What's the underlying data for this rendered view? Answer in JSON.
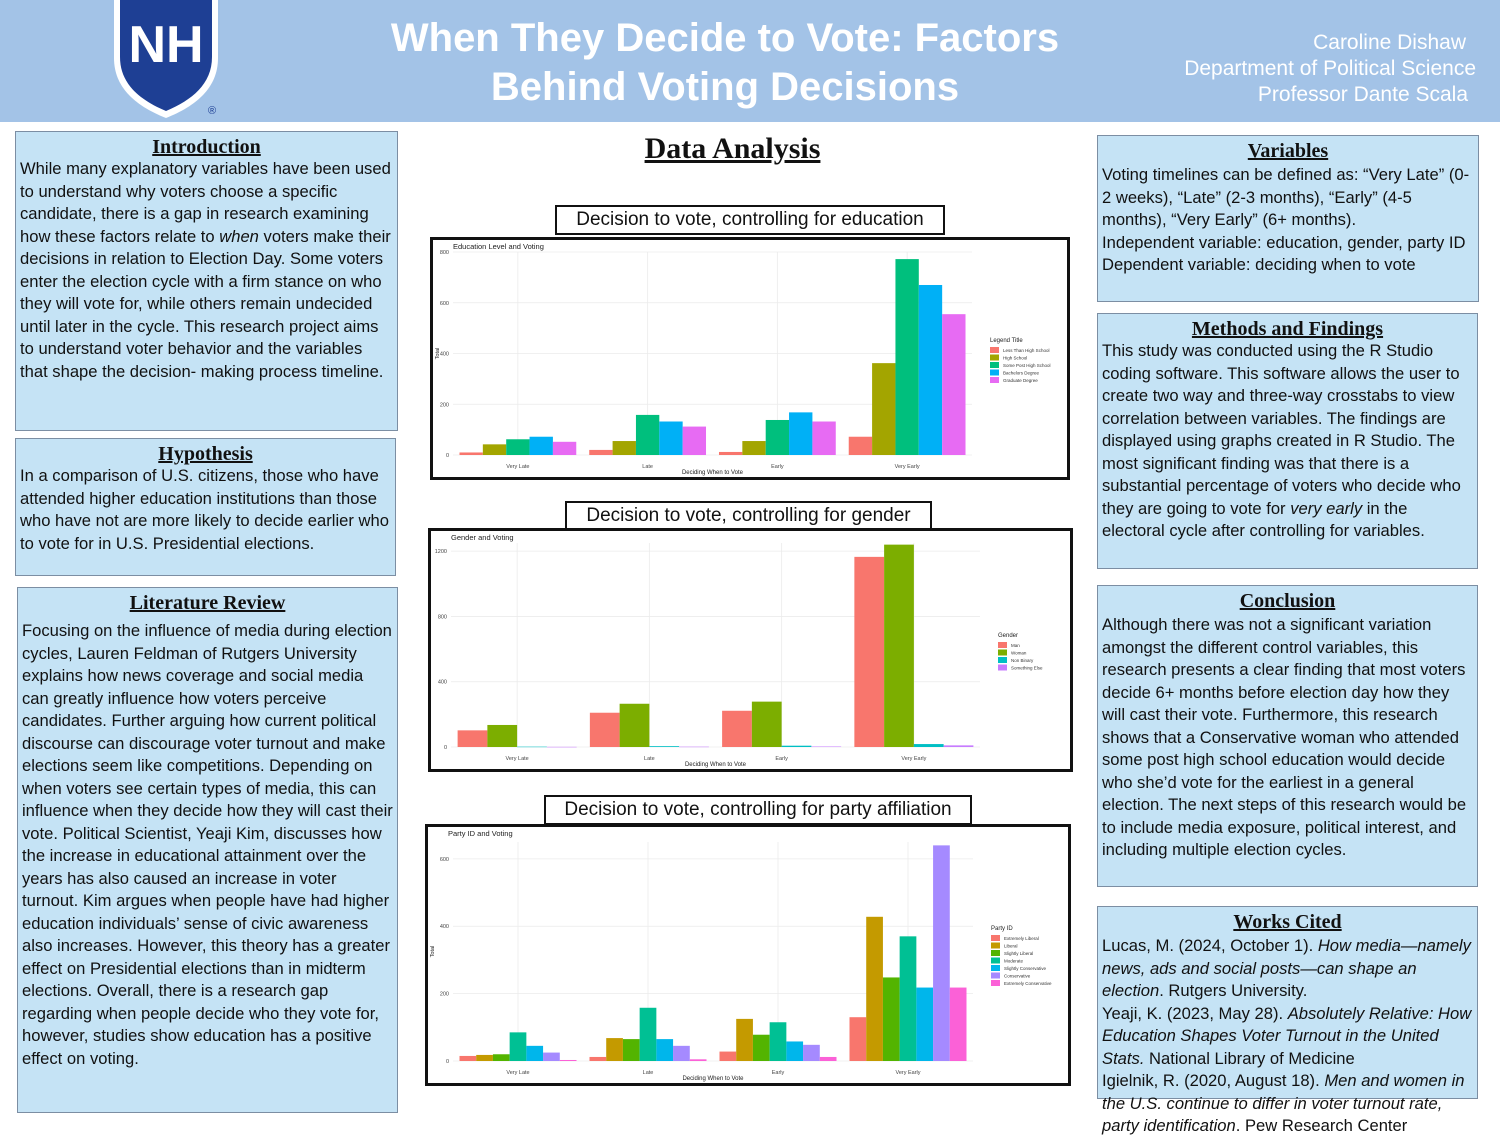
{
  "header": {
    "logo_text": "NH",
    "title_line1": "When They Decide to Vote: Factors",
    "title_line2": "Behind Voting Decisions",
    "author": "Caroline Dishaw",
    "department": "Department of Political Science",
    "professor": "Professor Dante Scala"
  },
  "introduction": {
    "heading": "Introduction",
    "text_before": "While many explanatory variables have been used to understand why voters choose a specific candidate, there is a gap in research examining how these factors relate to ",
    "text_em": "when",
    "text_after": " voters make their decisions in relation to Election Day. Some voters enter the election cycle with a firm stance on who they will vote for, while others remain undecided until later in the cycle. This research project aims to understand voter behavior and the variables that shape the decision- making process timeline."
  },
  "hypothesis": {
    "heading": "Hypothesis",
    "text": "In a comparison of U.S. citizens, those who have attended higher education institutions than those who have not are more likely to decide earlier who to vote for  in U.S.  Presidential elections."
  },
  "literature": {
    "heading": "Literature Review",
    "text": "Focusing on the influence of media during election cycles, Lauren Feldman of Rutgers University explains how news coverage and social media can greatly influence how voters perceive candidates. Further arguing how current political discourse can discourage voter turnout and make elections seem like competitions. Depending on when voters see certain types of media, this can influence when they decide how they will cast their vote. Political Scientist, Yeaji Kim, discusses how the increase in educational attainment over the years has also caused an increase in voter turnout. Kim argues when people have had higher education individuals’ sense of  civic awareness also increases. However, this theory has a greater effect on Presidential elections than in midterm elections. Overall, there is a research gap regarding when people decide who they vote for, however, studies show education has a positive effect on voting."
  },
  "data_analysis": {
    "heading": "Data Analysis"
  },
  "charts": {
    "education_label": "Decision to vote, controlling for education",
    "gender_label": "Decision to vote, controlling for gender",
    "party_label": "Decision to vote, controlling for party affiliation"
  },
  "chart_data": [
    {
      "type": "bar",
      "title": "Education Level and Voting",
      "xlabel": "Deciding When to Vote",
      "ylabel": "Total",
      "categories": [
        "Very Late",
        "Late",
        "Early",
        "Very Early"
      ],
      "ylim": [
        0,
        800
      ],
      "yticks": [
        0,
        200,
        400,
        600,
        800
      ],
      "legend_title": "Legend Title",
      "legend_position": "right",
      "series": [
        {
          "name": "Less Than High School",
          "color": "#f8766d",
          "values": [
            10,
            20,
            12,
            72
          ]
        },
        {
          "name": "High School",
          "color": "#a3a500",
          "values": [
            42,
            55,
            55,
            362
          ]
        },
        {
          "name": "Some Post High School",
          "color": "#00bf7d",
          "values": [
            62,
            158,
            138,
            772
          ]
        },
        {
          "name": "Bachelors Degree",
          "color": "#00b0f6",
          "values": [
            72,
            132,
            168,
            670
          ]
        },
        {
          "name": "Graduate Degree",
          "color": "#e76bf3",
          "values": [
            52,
            112,
            132,
            555
          ]
        }
      ]
    },
    {
      "type": "bar",
      "title": "Gender and Voting",
      "xlabel": "Deciding When to Vote",
      "ylabel": "",
      "categories": [
        "Very Late",
        "Late",
        "Early",
        "Very Early"
      ],
      "ylim": [
        0,
        1250
      ],
      "yticks": [
        0,
        400,
        800,
        1200
      ],
      "legend_title": "Gender",
      "legend_position": "right",
      "series": [
        {
          "name": "Man",
          "color": "#f8766d",
          "values": [
            102,
            210,
            222,
            1165
          ]
        },
        {
          "name": "Woman",
          "color": "#7cae00",
          "values": [
            135,
            265,
            278,
            1240
          ]
        },
        {
          "name": "Non Binary",
          "color": "#00bfc4",
          "values": [
            2,
            5,
            8,
            18
          ]
        },
        {
          "name": "Something Else",
          "color": "#c77cff",
          "values": [
            1,
            2,
            3,
            10
          ]
        }
      ]
    },
    {
      "type": "bar",
      "title": "Party ID and Voting",
      "xlabel": "Deciding When to Vote",
      "ylabel": "Total",
      "categories": [
        "Very Late",
        "Late",
        "Early",
        "Very Early"
      ],
      "ylim": [
        0,
        650
      ],
      "yticks": [
        0,
        200,
        400,
        600
      ],
      "legend_title": "Party ID",
      "legend_position": "right",
      "series": [
        {
          "name": "Extremely Liberal",
          "color": "#f8766d",
          "values": [
            15,
            12,
            28,
            130
          ]
        },
        {
          "name": "Liberal",
          "color": "#c49a00",
          "values": [
            18,
            68,
            125,
            428
          ]
        },
        {
          "name": "Slightly Liberal",
          "color": "#53b400",
          "values": [
            20,
            65,
            78,
            248
          ]
        },
        {
          "name": "Moderate",
          "color": "#00c094",
          "values": [
            85,
            158,
            115,
            370
          ]
        },
        {
          "name": "Slightly Conservative",
          "color": "#00b6eb",
          "values": [
            45,
            65,
            58,
            218
          ]
        },
        {
          "name": "Conservative",
          "color": "#a58aff",
          "values": [
            25,
            45,
            48,
            640
          ]
        },
        {
          "name": "Extremely Conservative",
          "color": "#fb61d7",
          "values": [
            3,
            5,
            12,
            218
          ]
        }
      ]
    }
  ],
  "variables": {
    "heading": "Variables",
    "line1": "Voting timelines can be defined as: “Very Late” (0-2 weeks), “Late” (2-3 months), “Early” (4-5 months), “Very Early” (6+ months).",
    "line2": "Independent variable: education, gender, party  ID",
    "line3": "Dependent variable: deciding when to vote"
  },
  "methods": {
    "heading": "Methods and Findings",
    "text_before": "This study was conducted using the R Studio coding software. This software allows the user to create two way and three-way crosstabs to view correlation between variables. The findings are displayed using graphs created in R Studio. The most significant finding was that there is a substantial percentage of voters who decide who they are going to vote for ",
    "text_em": "very early",
    "text_after": " in the electoral cycle after controlling for variables."
  },
  "conclusion": {
    "heading": "Conclusion",
    "text": "Although there was not a significant variation amongst the different control variables, this research presents a clear finding that most voters decide 6+ months before election day how they will cast their vote. Furthermore, this research shows that a Conservative woman who attended some post high school education would decide who she’d vote for the earliest in a general election. The next steps of this research would be to include media exposure, political interest, and including multiple election cycles."
  },
  "works_cited": {
    "heading": "Works Cited",
    "c1_a": "Lucas, M. (2024, October 1). ",
    "c1_em": "How media—namely news, ads and social posts—can shape an election",
    "c1_b": ". Rutgers University.",
    "c2_a": "Yeaji, K. (2023, May 28). ",
    "c2_em": "Absolutely Relative: How Education Shapes Voter Turnout in the United Stats.",
    "c2_b": " National Library of Medicine",
    "c3_a": "Igielnik, R. (2020, August 18). ",
    "c3_em": "Men and women in the U.S. continue to differ in voter turnout rate, party identification",
    "c3_b": ". Pew Research Center"
  }
}
